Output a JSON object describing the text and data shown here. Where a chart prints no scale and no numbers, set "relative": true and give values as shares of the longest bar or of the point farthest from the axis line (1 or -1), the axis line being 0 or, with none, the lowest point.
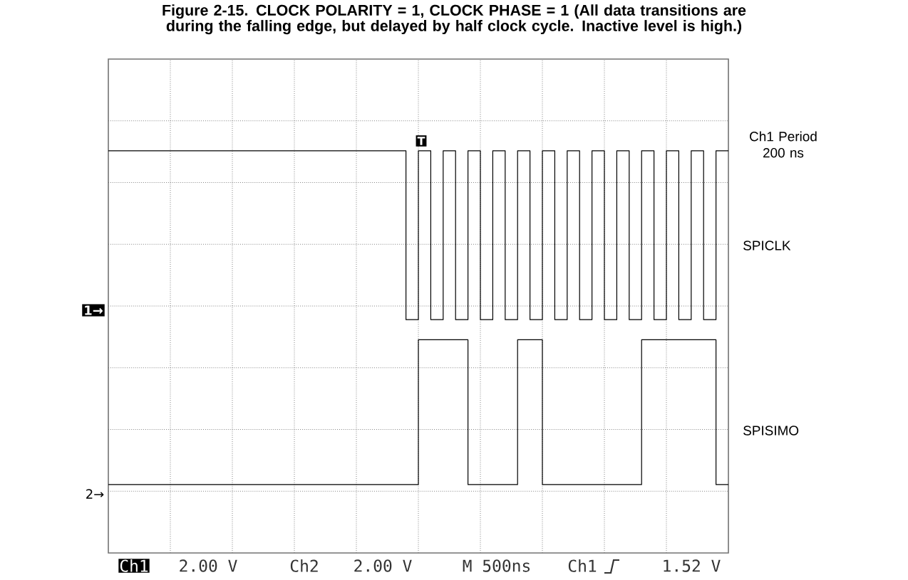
{
  "chart_data": {
    "type": "step",
    "title": "Figure 2-15. CLOCK POLARITY = 1, CLOCK PHASE = 1 (All data transitions are during the falling edge, but delayed by half clock cycle. Inactive level is high.)",
    "relative": true,
    "grid": true,
    "legend": false,
    "marker": "none",
    "line_style": "solid",
    "categories": [
      null,
      null,
      null,
      null,
      null,
      null,
      null,
      null,
      null,
      null,
      null,
      null,
      null,
      null,
      null,
      null,
      null,
      null,
      null,
      null,
      null,
      null,
      null,
      null,
      null,
      null,
      null,
      null,
      null,
      null,
      null,
      null,
      null,
      null,
      null,
      null,
      null,
      null,
      null,
      null,
      null,
      null,
      null,
      null,
      null,
      null,
      null,
      null,
      null,
      null,
      null
    ],
    "series": [
      {
        "name": "SPICLK",
        "color": "#000000",
        "values": [
          1,
          1,
          1,
          1,
          1,
          1,
          1,
          1,
          1,
          1,
          1,
          1,
          1,
          1,
          1,
          1,
          1,
          1,
          1,
          1,
          1,
          1,
          1,
          1,
          0.58,
          1,
          0.58,
          1,
          0.58,
          1,
          0.58,
          1,
          0.58,
          1,
          0.58,
          1,
          0.58,
          1,
          0.58,
          1,
          0.58,
          1,
          0.58,
          1,
          0.58,
          1,
          0.58,
          1,
          0.58,
          1,
          1
        ]
      },
      {
        "name": "SPISIMO",
        "color": "#000000",
        "values": [
          0.17,
          0.17,
          0.17,
          0.17,
          0.17,
          0.17,
          0.17,
          0.17,
          0.17,
          0.17,
          0.17,
          0.17,
          0.17,
          0.17,
          0.17,
          0.17,
          0.17,
          0.17,
          0.17,
          0.17,
          0.17,
          0.17,
          0.17,
          0.17,
          0.17,
          0.53,
          0.53,
          0.53,
          0.53,
          0.17,
          0.17,
          0.17,
          0.17,
          0.53,
          0.53,
          0.17,
          0.17,
          0.17,
          0.17,
          0.17,
          0.17,
          0.17,
          0.17,
          0.53,
          0.53,
          0.53,
          0.53,
          0.53,
          0.53,
          0.17,
          0.17
        ]
      }
    ],
    "annotations": [
      "Ch1 Period 200 ns",
      "1→",
      "2→",
      "T",
      "Ch1",
      "2.00 V",
      "Ch2",
      "2.00 V",
      "M 500ns",
      "Ch1",
      "1.52 V"
    ]
  }
}
